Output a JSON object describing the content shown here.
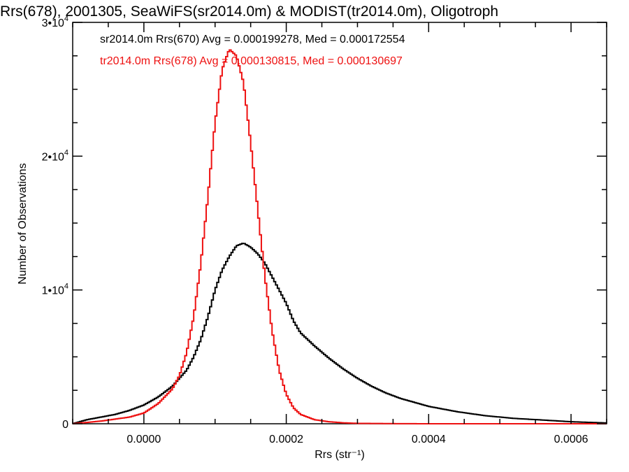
{
  "chart_data": {
    "type": "line",
    "title": "Rrs(678), 2001305, SeaWiFS(sr2014.0m) & MODIST(tr2014.0m), Oligotroph",
    "xlabel": "Rrs (str⁻¹)",
    "ylabel": "Number of Observations",
    "xlim": [
      -0.0001,
      0.00065
    ],
    "ylim": [
      0,
      30000
    ],
    "x_ticks": [
      {
        "value": 0.0,
        "label": "0.0000"
      },
      {
        "value": 0.0002,
        "label": "0.0002"
      },
      {
        "value": 0.0004,
        "label": "0.0004"
      },
      {
        "value": 0.0006,
        "label": "0.0006"
      }
    ],
    "y_ticks": [
      {
        "value": 0,
        "base": "0",
        "exp": ""
      },
      {
        "value": 10000,
        "base": "1•10",
        "exp": "4"
      },
      {
        "value": 20000,
        "base": "2•10",
        "exp": "4"
      },
      {
        "value": 30000,
        "base": "3•10",
        "exp": "4"
      }
    ],
    "grid": false,
    "legend_position": "top-left",
    "series": [
      {
        "name": "sr2014.0m Rrs(670) Avg = 0.000199278, Med = 0.000172554",
        "color": "#000000",
        "x": [
          -0.0001,
          -8e-05,
          -6e-05,
          -4e-05,
          -2e-05,
          0.0,
          2e-05,
          4e-05,
          6e-05,
          7e-05,
          8e-05,
          9e-05,
          0.0001,
          0.00011,
          0.00012,
          0.00013,
          0.00014,
          0.00015,
          0.00016,
          0.00017,
          0.00018,
          0.00019,
          0.0002,
          0.00021,
          0.00022,
          0.00024,
          0.00026,
          0.00028,
          0.0003,
          0.00032,
          0.00034,
          0.00036,
          0.00038,
          0.0004,
          0.00044,
          0.00048,
          0.00052,
          0.00056,
          0.0006,
          0.00065
        ],
        "y": [
          0,
          300,
          500,
          700,
          1000,
          1400,
          2000,
          2800,
          4000,
          5000,
          6300,
          8000,
          10000,
          11500,
          12500,
          13300,
          13500,
          13200,
          12700,
          12000,
          11000,
          10000,
          9000,
          7700,
          6800,
          5800,
          4900,
          4100,
          3400,
          2800,
          2300,
          1900,
          1600,
          1300,
          900,
          600,
          400,
          280,
          150,
          60
        ]
      },
      {
        "name": "tr2014.0m Rrs(678) Avg = 0.000130815, Med = 0.000130697",
        "color": "#ee1111",
        "x": [
          -0.0001,
          -6e-05,
          -2e-05,
          0.0,
          2e-05,
          4e-05,
          5e-05,
          6e-05,
          7e-05,
          8e-05,
          9e-05,
          0.0001,
          0.00011,
          0.00012,
          0.00013,
          0.00014,
          0.00015,
          0.00016,
          0.00017,
          0.00018,
          0.00019,
          0.0002,
          0.00021,
          0.00022,
          0.00024,
          0.00026,
          0.00028,
          0.0003,
          0.00035,
          0.0004,
          0.00065
        ],
        "y": [
          0,
          200,
          500,
          800,
          1500,
          2600,
          3600,
          5300,
          8000,
          12000,
          17000,
          22500,
          26500,
          28000,
          27500,
          25500,
          21000,
          16000,
          11000,
          7000,
          4000,
          2200,
          1200,
          700,
          300,
          150,
          70,
          30,
          10,
          0,
          0
        ]
      }
    ]
  }
}
